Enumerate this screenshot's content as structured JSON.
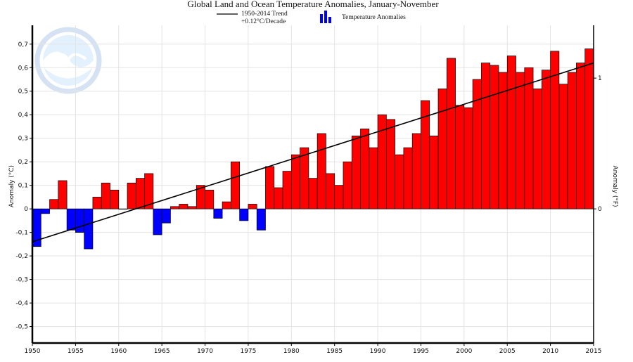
{
  "chart_data": {
    "type": "bar",
    "title": "Global Land and Ocean Temperature Anomalies, January-November",
    "ylabel_left": "Anomaly (°C)",
    "ylabel_right": "Anomaly (°F)",
    "xlim": [
      1950,
      2015
    ],
    "ylim": [
      -0.57,
      0.78
    ],
    "x_ticks": [
      1950,
      1955,
      1960,
      1965,
      1970,
      1975,
      1980,
      1985,
      1990,
      1995,
      2000,
      2005,
      2010,
      2015
    ],
    "y_ticks": [
      -0.5,
      -0.4,
      -0.3,
      -0.2,
      -0.1,
      0,
      0.1,
      0.2,
      0.3,
      0.4,
      0.5,
      0.6,
      0.7
    ],
    "y_tick_labels": [
      "-0,5",
      "-0,4",
      "-0,3",
      "-0,2",
      "-0,1",
      "0",
      "0,1",
      "0,2",
      "0,3",
      "0,4",
      "0,5",
      "0,6",
      "0,7"
    ],
    "right_ticks": [
      {
        "value_c": 0,
        "label": "0"
      },
      {
        "value_c": 0.5556,
        "label": "1"
      }
    ],
    "grid": true,
    "legend": {
      "position": "top",
      "trend_label_line1": "1950-2014 Trend",
      "trend_label_line2": "+0.12°C/Decade",
      "bars_label": "Temperature Anomalies"
    },
    "trend": {
      "x": [
        1950,
        2014
      ],
      "y": [
        -0.14,
        0.62
      ]
    },
    "colors": {
      "positive": "#ff0000",
      "negative": "#0000ff",
      "trend": "#000000"
    },
    "series": [
      {
        "x": [
          1950,
          1951,
          1952,
          1953,
          1954,
          1955,
          1956,
          1957,
          1958,
          1959,
          1960,
          1961,
          1962,
          1963,
          1964,
          1965,
          1966,
          1967,
          1968,
          1969,
          1970,
          1971,
          1972,
          1973,
          1974,
          1975,
          1976,
          1977,
          1978,
          1979,
          1980,
          1981,
          1982,
          1983,
          1984,
          1985,
          1986,
          1987,
          1988,
          1989,
          1990,
          1991,
          1992,
          1993,
          1994,
          1995,
          1996,
          1997,
          1998,
          1999,
          2000,
          2001,
          2002,
          2003,
          2004,
          2005,
          2006,
          2007,
          2008,
          2009,
          2010,
          2011,
          2012,
          2013,
          2014
        ],
        "values": [
          -0.16,
          -0.02,
          0.04,
          0.12,
          -0.09,
          -0.1,
          -0.17,
          0.05,
          0.11,
          0.08,
          0.0,
          0.11,
          0.13,
          0.15,
          -0.11,
          -0.06,
          0.01,
          0.02,
          0.01,
          0.1,
          0.08,
          -0.04,
          0.03,
          0.2,
          -0.05,
          0.02,
          -0.09,
          0.18,
          0.09,
          0.16,
          0.23,
          0.26,
          0.13,
          0.32,
          0.15,
          0.1,
          0.2,
          0.31,
          0.34,
          0.26,
          0.4,
          0.38,
          0.23,
          0.26,
          0.32,
          0.46,
          0.31,
          0.51,
          0.64,
          0.44,
          0.43,
          0.55,
          0.62,
          0.61,
          0.58,
          0.65,
          0.58,
          0.6,
          0.51,
          0.59,
          0.67,
          0.53,
          0.58,
          0.62,
          0.68
        ]
      }
    ]
  }
}
